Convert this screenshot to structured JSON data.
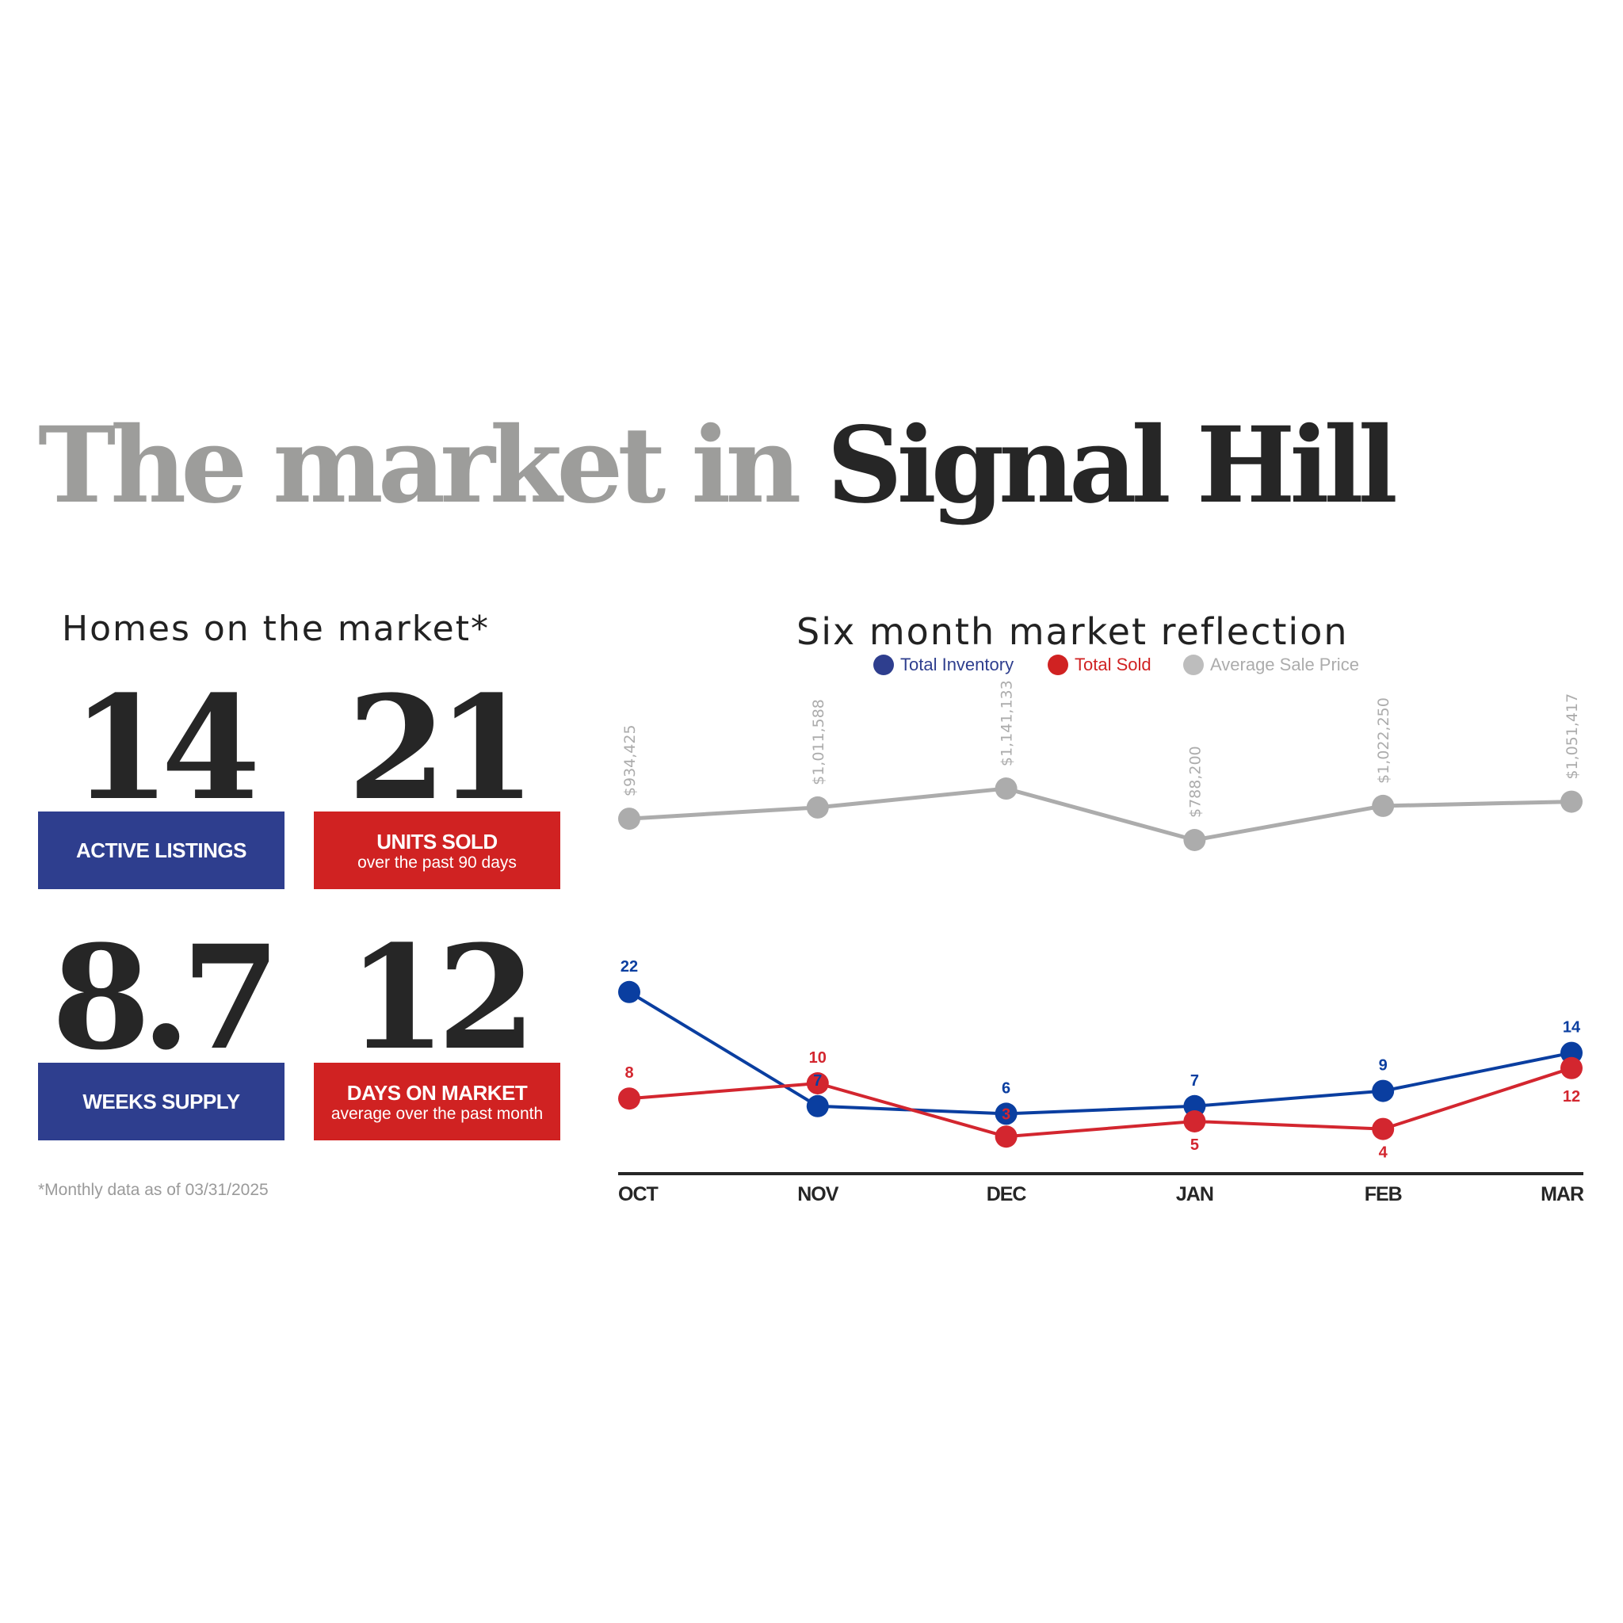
{
  "header": {
    "title_light": "The market in",
    "title_dark": "Signal Hill"
  },
  "left": {
    "heading": "Homes on the market*",
    "stats": [
      {
        "value": "14",
        "label": "ACTIVE LISTINGS",
        "sub": ""
      },
      {
        "value": "21",
        "label": "UNITS SOLD",
        "sub": "over the past 90 days"
      },
      {
        "value": "8.7",
        "label": "WEEKS SUPPLY",
        "sub": ""
      },
      {
        "value": "12",
        "label": "DAYS ON MARKET",
        "sub": "average over the past month"
      }
    ],
    "footnote": "*Monthly data as of 03/31/2025"
  },
  "colors": {
    "blue": "#0a3ea0",
    "red": "#d3262f",
    "gray": "#acacac",
    "box_blue": "#2e3e8e",
    "box_red": "#d02222"
  },
  "chart_data": {
    "type": "line",
    "title": "Six month market reflection",
    "categories": [
      "OCT",
      "NOV",
      "DEC",
      "JAN",
      "FEB",
      "MAR"
    ],
    "legend_placement": "top-center",
    "series": [
      {
        "name": "Total Inventory",
        "values": [
          22,
          7,
          6,
          7,
          9,
          14
        ],
        "labels": [
          "22",
          "7",
          "6",
          "7",
          "9",
          "14"
        ]
      },
      {
        "name": "Total Sold",
        "values": [
          8,
          10,
          3,
          5,
          4,
          12
        ],
        "labels": [
          "8",
          "10",
          "3",
          "5",
          "4",
          "12"
        ]
      },
      {
        "name": "Average Sale Price",
        "values": [
          934425,
          1011588,
          1141133,
          788200,
          1022250,
          1051417
        ],
        "labels": [
          "$934,425",
          "$1,011,588",
          "$1,141,133",
          "$788,200",
          "$1,022,250",
          "$1,051,417"
        ]
      }
    ]
  }
}
